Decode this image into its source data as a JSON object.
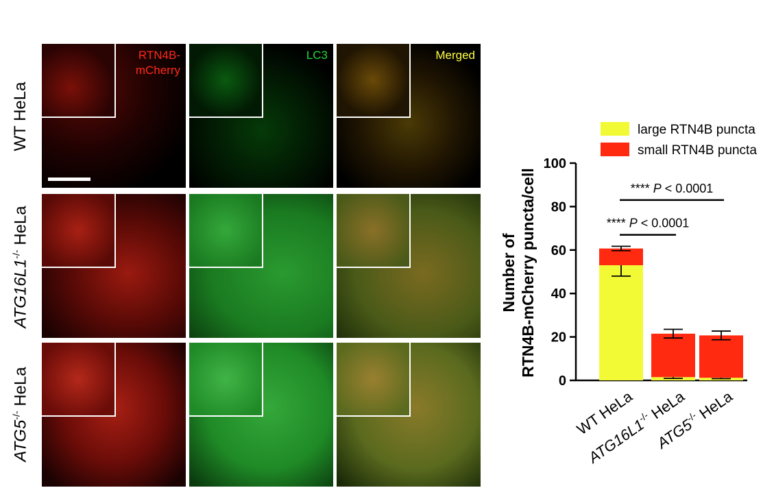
{
  "rows": [
    {
      "label": "WT HeLa"
    },
    {
      "label_italic": "ATG16L1",
      "label_sup": "-/-",
      "label_rest": " HeLa"
    },
    {
      "label_italic": "ATG5",
      "label_sup": "-/-",
      "label_rest": " HeLa"
    }
  ],
  "channels": [
    {
      "label": "RTN4B-\nmCherry",
      "color": "#ff2a1a"
    },
    {
      "label": "LC3",
      "color": "#22dd33"
    },
    {
      "label": "Merged",
      "color": "#ffff44"
    }
  ],
  "chart_data": {
    "type": "bar",
    "stacked": true,
    "ylabel_line1": "Number of",
    "ylabel_line2": "RTN4B-mCherry puncta/cell",
    "ylim": [
      0,
      100
    ],
    "yticks": [
      "0",
      "20",
      "40",
      "60",
      "80",
      "100"
    ],
    "categories": [
      {
        "text": "WT HeLa"
      },
      {
        "italic": "ATG16L1",
        "sup": "-/-",
        "rest": " HeLa"
      },
      {
        "italic": "ATG5",
        "sup": "-/-",
        "rest": " HeLa"
      }
    ],
    "series": [
      {
        "name": "large RTN4B puncta",
        "color": "#f2fa36",
        "values": [
          53,
          1.5,
          1.2
        ],
        "err": [
          5,
          0.6,
          0.4
        ]
      },
      {
        "name": "small RTN4B puncta",
        "color": "#ff2a10",
        "values": [
          7.7,
          20,
          19.5
        ],
        "err": [
          1,
          2,
          2
        ]
      }
    ],
    "annotations": [
      {
        "text": "**** ",
        "italic": "P",
        "rest": " < 0.0001",
        "from": 0,
        "to": 2,
        "level": 83
      },
      {
        "text": "**** ",
        "italic": "P",
        "rest": " < 0.0001",
        "from": 0,
        "to": 1,
        "level": 67
      }
    ],
    "legend_position": "top"
  }
}
